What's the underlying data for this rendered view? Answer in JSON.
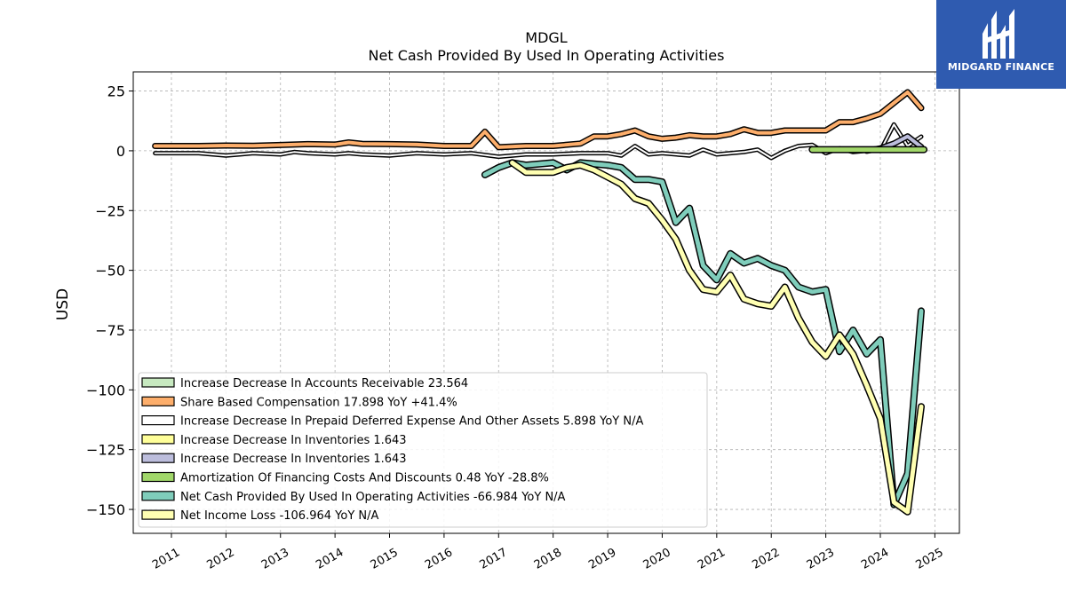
{
  "brand": {
    "name": "MIDGARD FINANCE",
    "color": "#2f5bb0"
  },
  "chart_data": {
    "type": "line",
    "title": "MDGL",
    "subtitle": "Net Cash Provided By Used In Operating Activities",
    "ylabel": "USD",
    "xlabel": "",
    "ylim": [
      -160,
      33
    ],
    "xlim": [
      2010.3,
      2025.45
    ],
    "yticks": [
      25,
      0,
      -25,
      -50,
      -75,
      -100,
      -125,
      -150
    ],
    "ytick_labels": [
      "25",
      "0",
      "−25",
      "−50",
      "−75",
      "−100",
      "−125",
      "−150"
    ],
    "xticks": [
      2011,
      2012,
      2013,
      2014,
      2015,
      2016,
      2017,
      2018,
      2019,
      2020,
      2021,
      2022,
      2023,
      2024,
      2025
    ],
    "xtick_labels": [
      "2011",
      "2012",
      "2013",
      "2014",
      "2015",
      "2016",
      "2017",
      "2018",
      "2019",
      "2020",
      "2021",
      "2022",
      "2023",
      "2024",
      "2025"
    ],
    "grid": true,
    "legend_position": "lower-left",
    "series": [
      {
        "name": "Increase Decrease In Accounts Receivable  23.564",
        "color": "#c7e9c0",
        "width": 3,
        "points": []
      },
      {
        "name": "Share Based Compensation  17.898 YoY +41.4%",
        "color": "#fdae6b",
        "width": 4,
        "points": [
          [
            2010.7,
            2
          ],
          [
            2011,
            2
          ],
          [
            2011.5,
            2
          ],
          [
            2012,
            2.2
          ],
          [
            2012.5,
            2.1
          ],
          [
            2013,
            2.4
          ],
          [
            2013.5,
            2.8
          ],
          [
            2014,
            2.6
          ],
          [
            2014.25,
            3.5
          ],
          [
            2014.5,
            2.9
          ],
          [
            2015,
            2.8
          ],
          [
            2015.5,
            2.6
          ],
          [
            2016,
            2
          ],
          [
            2016.5,
            2
          ],
          [
            2016.75,
            8
          ],
          [
            2017,
            1.5
          ],
          [
            2017.5,
            2
          ],
          [
            2018,
            2
          ],
          [
            2018.5,
            3
          ],
          [
            2018.75,
            6
          ],
          [
            2019,
            6
          ],
          [
            2019.25,
            7
          ],
          [
            2019.5,
            8.5
          ],
          [
            2019.75,
            6
          ],
          [
            2020,
            5
          ],
          [
            2020.25,
            5.5
          ],
          [
            2020.5,
            6.5
          ],
          [
            2020.75,
            6
          ],
          [
            2021,
            6
          ],
          [
            2021.25,
            7
          ],
          [
            2021.5,
            9
          ],
          [
            2021.75,
            7.5
          ],
          [
            2022,
            7.5
          ],
          [
            2022.25,
            8.5
          ],
          [
            2022.5,
            8.5
          ],
          [
            2022.75,
            8.5
          ],
          [
            2023,
            8.5
          ],
          [
            2023.25,
            12
          ],
          [
            2023.5,
            12
          ],
          [
            2023.75,
            13.5
          ],
          [
            2024,
            15.5
          ],
          [
            2024.25,
            20
          ],
          [
            2024.5,
            24.5
          ],
          [
            2024.75,
            17.9
          ]
        ]
      },
      {
        "name": "Increase Decrease In Prepaid Deferred Expense And Other Assets  5.898 YoY N/A",
        "color": "#ffffff",
        "width": 2,
        "points": [
          [
            2010.7,
            -1
          ],
          [
            2011,
            -1
          ],
          [
            2011.5,
            -1
          ],
          [
            2012,
            -2
          ],
          [
            2012.25,
            -1.5
          ],
          [
            2012.5,
            -1
          ],
          [
            2013,
            -1.5
          ],
          [
            2013.25,
            -0.5
          ],
          [
            2013.5,
            -1
          ],
          [
            2014,
            -1.5
          ],
          [
            2014.25,
            -1
          ],
          [
            2014.5,
            -1.5
          ],
          [
            2015,
            -2
          ],
          [
            2015.5,
            -1
          ],
          [
            2016,
            -1.5
          ],
          [
            2016.5,
            -1
          ],
          [
            2017,
            -2.5
          ],
          [
            2017.5,
            -1.5
          ],
          [
            2018,
            -1.5
          ],
          [
            2018.5,
            -1
          ],
          [
            2019,
            -1
          ],
          [
            2019.25,
            -2
          ],
          [
            2019.5,
            2
          ],
          [
            2019.75,
            -1.5
          ],
          [
            2020,
            -1
          ],
          [
            2020.5,
            -2
          ],
          [
            2020.75,
            0.5
          ],
          [
            2021,
            -1.5
          ],
          [
            2021.25,
            -1
          ],
          [
            2021.5,
            -0.5
          ],
          [
            2021.75,
            0.5
          ],
          [
            2022,
            -3
          ],
          [
            2022.25,
            0
          ],
          [
            2022.5,
            2
          ],
          [
            2022.75,
            2.5
          ],
          [
            2023,
            -1
          ],
          [
            2023.25,
            1
          ],
          [
            2023.5,
            -0.5
          ],
          [
            2023.75,
            0
          ],
          [
            2024,
            0
          ],
          [
            2024.25,
            11
          ],
          [
            2024.5,
            2
          ],
          [
            2024.75,
            5.9
          ]
        ]
      },
      {
        "name": "Increase Decrease In Inventories  1.643",
        "color": "#ffff99",
        "width": 3,
        "points": []
      },
      {
        "name": "Increase Decrease In Inventories  1.643",
        "color": "#bcbddc",
        "width": 4,
        "points": [
          [
            2023.75,
            0
          ],
          [
            2024,
            1
          ],
          [
            2024.25,
            3
          ],
          [
            2024.5,
            6
          ],
          [
            2024.75,
            1.6
          ]
        ]
      },
      {
        "name": "Amortization Of Financing Costs And Discounts  0.48 YoY -28.8%",
        "color": "#a1d76a",
        "width": 5,
        "points": [
          [
            2022.75,
            0.5
          ],
          [
            2024.8,
            0.48
          ]
        ]
      },
      {
        "name": "Net Cash Provided By Used In Operating Activities  -66.984 YoY N/A",
        "color": "#7fcdbb",
        "width": 5,
        "points": [
          [
            2016.75,
            -10
          ],
          [
            2017,
            -7
          ],
          [
            2017.25,
            -5
          ],
          [
            2017.5,
            -6
          ],
          [
            2018,
            -5
          ],
          [
            2018.25,
            -8
          ],
          [
            2018.5,
            -5
          ],
          [
            2018.75,
            -5.5
          ],
          [
            2019,
            -6
          ],
          [
            2019.25,
            -7
          ],
          [
            2019.5,
            -12
          ],
          [
            2019.75,
            -12
          ],
          [
            2020,
            -13
          ],
          [
            2020.25,
            -30
          ],
          [
            2020.5,
            -24
          ],
          [
            2020.75,
            -48
          ],
          [
            2021,
            -54
          ],
          [
            2021.25,
            -43
          ],
          [
            2021.5,
            -47
          ],
          [
            2021.75,
            -45
          ],
          [
            2022,
            -48
          ],
          [
            2022.25,
            -50
          ],
          [
            2022.5,
            -57
          ],
          [
            2022.75,
            -59
          ],
          [
            2023,
            -58
          ],
          [
            2023.25,
            -84
          ],
          [
            2023.5,
            -75
          ],
          [
            2023.75,
            -85
          ],
          [
            2024,
            -79
          ],
          [
            2024.25,
            -148
          ],
          [
            2024.5,
            -135
          ],
          [
            2024.75,
            -67
          ]
        ]
      },
      {
        "name": "Net Income Loss  -106.964 YoY N/A",
        "color": "#ffffb2",
        "width": 5,
        "points": [
          [
            2017.25,
            -5
          ],
          [
            2017.5,
            -9
          ],
          [
            2018,
            -9
          ],
          [
            2018.25,
            -7
          ],
          [
            2018.5,
            -6
          ],
          [
            2018.75,
            -8
          ],
          [
            2019,
            -11
          ],
          [
            2019.25,
            -14
          ],
          [
            2019.5,
            -20
          ],
          [
            2019.75,
            -22
          ],
          [
            2020,
            -29
          ],
          [
            2020.25,
            -37
          ],
          [
            2020.5,
            -50
          ],
          [
            2020.75,
            -58
          ],
          [
            2021,
            -59
          ],
          [
            2021.25,
            -52
          ],
          [
            2021.5,
            -62
          ],
          [
            2021.75,
            -64
          ],
          [
            2022,
            -65
          ],
          [
            2022.25,
            -57
          ],
          [
            2022.5,
            -70
          ],
          [
            2022.75,
            -80
          ],
          [
            2023,
            -86
          ],
          [
            2023.25,
            -77
          ],
          [
            2023.5,
            -85
          ],
          [
            2023.75,
            -98
          ],
          [
            2024,
            -112
          ],
          [
            2024.25,
            -147
          ],
          [
            2024.5,
            -151
          ],
          [
            2024.75,
            -107
          ]
        ]
      }
    ]
  }
}
